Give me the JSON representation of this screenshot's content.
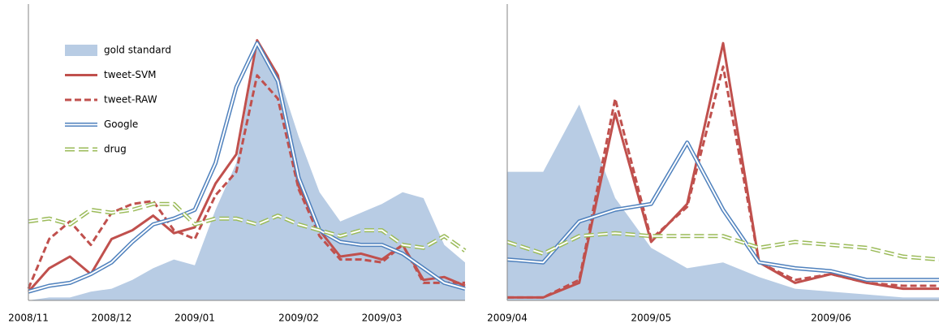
{
  "chart_data": [
    {
      "type": "line",
      "ylim": [
        0,
        100
      ],
      "legend": "upper left",
      "categories": [
        "2008/11",
        null,
        null,
        null,
        "2008/12",
        null,
        null,
        null,
        "2009/01",
        null,
        null,
        null,
        null,
        "2009/02",
        null,
        null,
        null,
        "2009/03",
        null,
        null,
        null,
        null
      ],
      "series": [
        {
          "name": "gold standard",
          "color": "#b8cce4",
          "style": "area",
          "values": [
            0,
            1,
            1,
            3,
            4,
            7,
            11,
            14,
            12,
            31,
            47,
            87,
            78,
            56,
            37,
            27,
            30,
            33,
            37,
            35,
            19,
            13
          ]
        },
        {
          "name": "tweet-SVM",
          "color": "#c0504d",
          "style": "solid",
          "values": [
            3,
            11,
            15,
            9,
            21,
            24,
            29,
            23,
            25,
            40,
            50,
            89,
            77,
            39,
            24,
            15,
            16,
            14,
            19,
            7,
            8,
            5
          ]
        },
        {
          "name": "tweet-RAW",
          "color": "#c0504d",
          "style": "dashed",
          "values": [
            4,
            21,
            27,
            19,
            30,
            33,
            34,
            24,
            21,
            36,
            44,
            77,
            69,
            38,
            22,
            14,
            14,
            13,
            19,
            6,
            6,
            6
          ]
        },
        {
          "name": "Google",
          "color": "#4f81bd",
          "style": "double",
          "values": [
            3,
            5,
            6,
            9,
            13,
            20,
            26,
            28,
            31,
            47,
            73,
            88,
            75,
            42,
            24,
            20,
            19,
            19,
            16,
            11,
            6,
            4
          ]
        },
        {
          "name": "drug",
          "color": "#9bbb59",
          "style": "double-dashed",
          "values": [
            27,
            28,
            26,
            31,
            30,
            31,
            33,
            33,
            26,
            28,
            28,
            26,
            29,
            26,
            24,
            22,
            24,
            24,
            19,
            18,
            22,
            17
          ]
        }
      ]
    },
    {
      "type": "line",
      "ylim": [
        0,
        100
      ],
      "categories": [
        "2009/04",
        null,
        null,
        null,
        "2009/05",
        null,
        null,
        null,
        null,
        "2009/06",
        null,
        null,
        null
      ],
      "series": [
        {
          "color": "#b8cce4",
          "style": "area",
          "values": [
            44,
            44,
            67,
            35,
            18,
            11,
            13,
            8,
            4,
            3,
            2,
            1,
            1
          ]
        },
        {
          "color": "#c0504d",
          "style": "solid",
          "values": [
            1,
            1,
            6,
            64,
            20,
            33,
            88,
            13,
            6,
            9,
            6,
            4,
            4
          ]
        },
        {
          "color": "#c0504d",
          "style": "dashed",
          "values": [
            1,
            1,
            7,
            69,
            21,
            32,
            80,
            13,
            7,
            9,
            6,
            5,
            5
          ]
        },
        {
          "color": "#4f81bd",
          "style": "double",
          "values": [
            14,
            13,
            27,
            31,
            33,
            54,
            31,
            13,
            11,
            10,
            7,
            7,
            7
          ]
        },
        {
          "color": "#9bbb59",
          "style": "double-dashed",
          "values": [
            20,
            16,
            22,
            23,
            22,
            22,
            22,
            18,
            20,
            19,
            18,
            15,
            14
          ]
        }
      ]
    }
  ]
}
